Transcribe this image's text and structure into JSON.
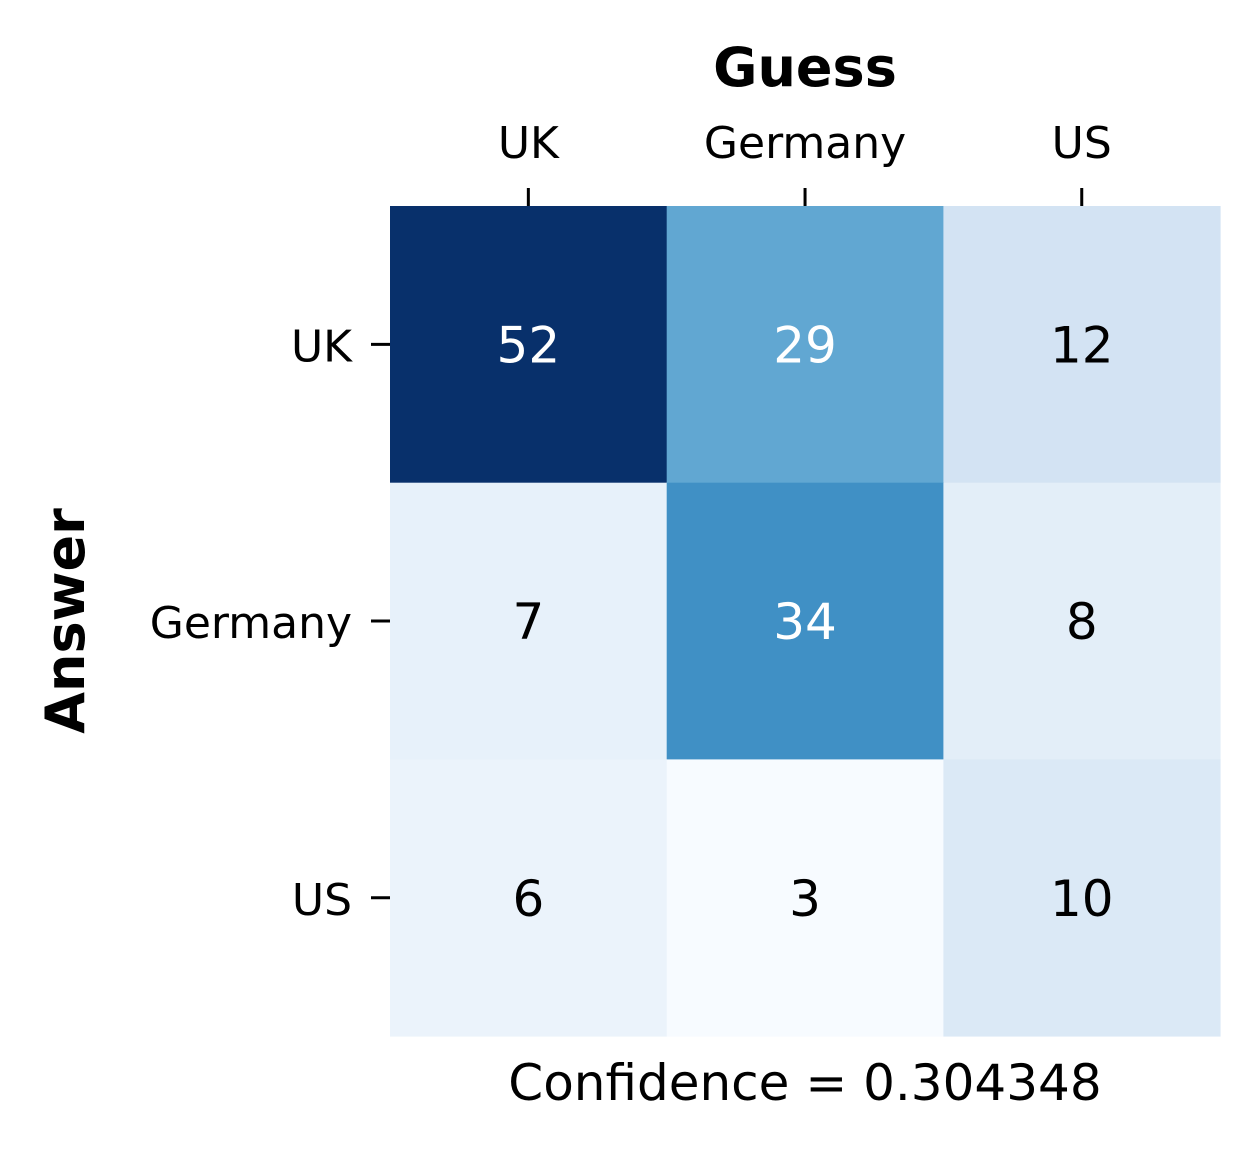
{
  "chart_data": {
    "type": "heatmap",
    "title": "Guess",
    "ylabel": "Answer",
    "xlabel": "Confidence = 0.304348",
    "x_categories": [
      "UK",
      "Germany",
      "US"
    ],
    "y_categories": [
      "UK",
      "Germany",
      "US"
    ],
    "values": [
      [
        52,
        29,
        12
      ],
      [
        7,
        34,
        8
      ],
      [
        6,
        3,
        10
      ]
    ],
    "colormap": "Blues",
    "x_axis_position": "top",
    "grid": false,
    "legend": "none",
    "colors": {
      "max": "#08306b",
      "min": "#f7fbff",
      "text_dark": "#000000",
      "text_light": "#ffffff"
    }
  }
}
